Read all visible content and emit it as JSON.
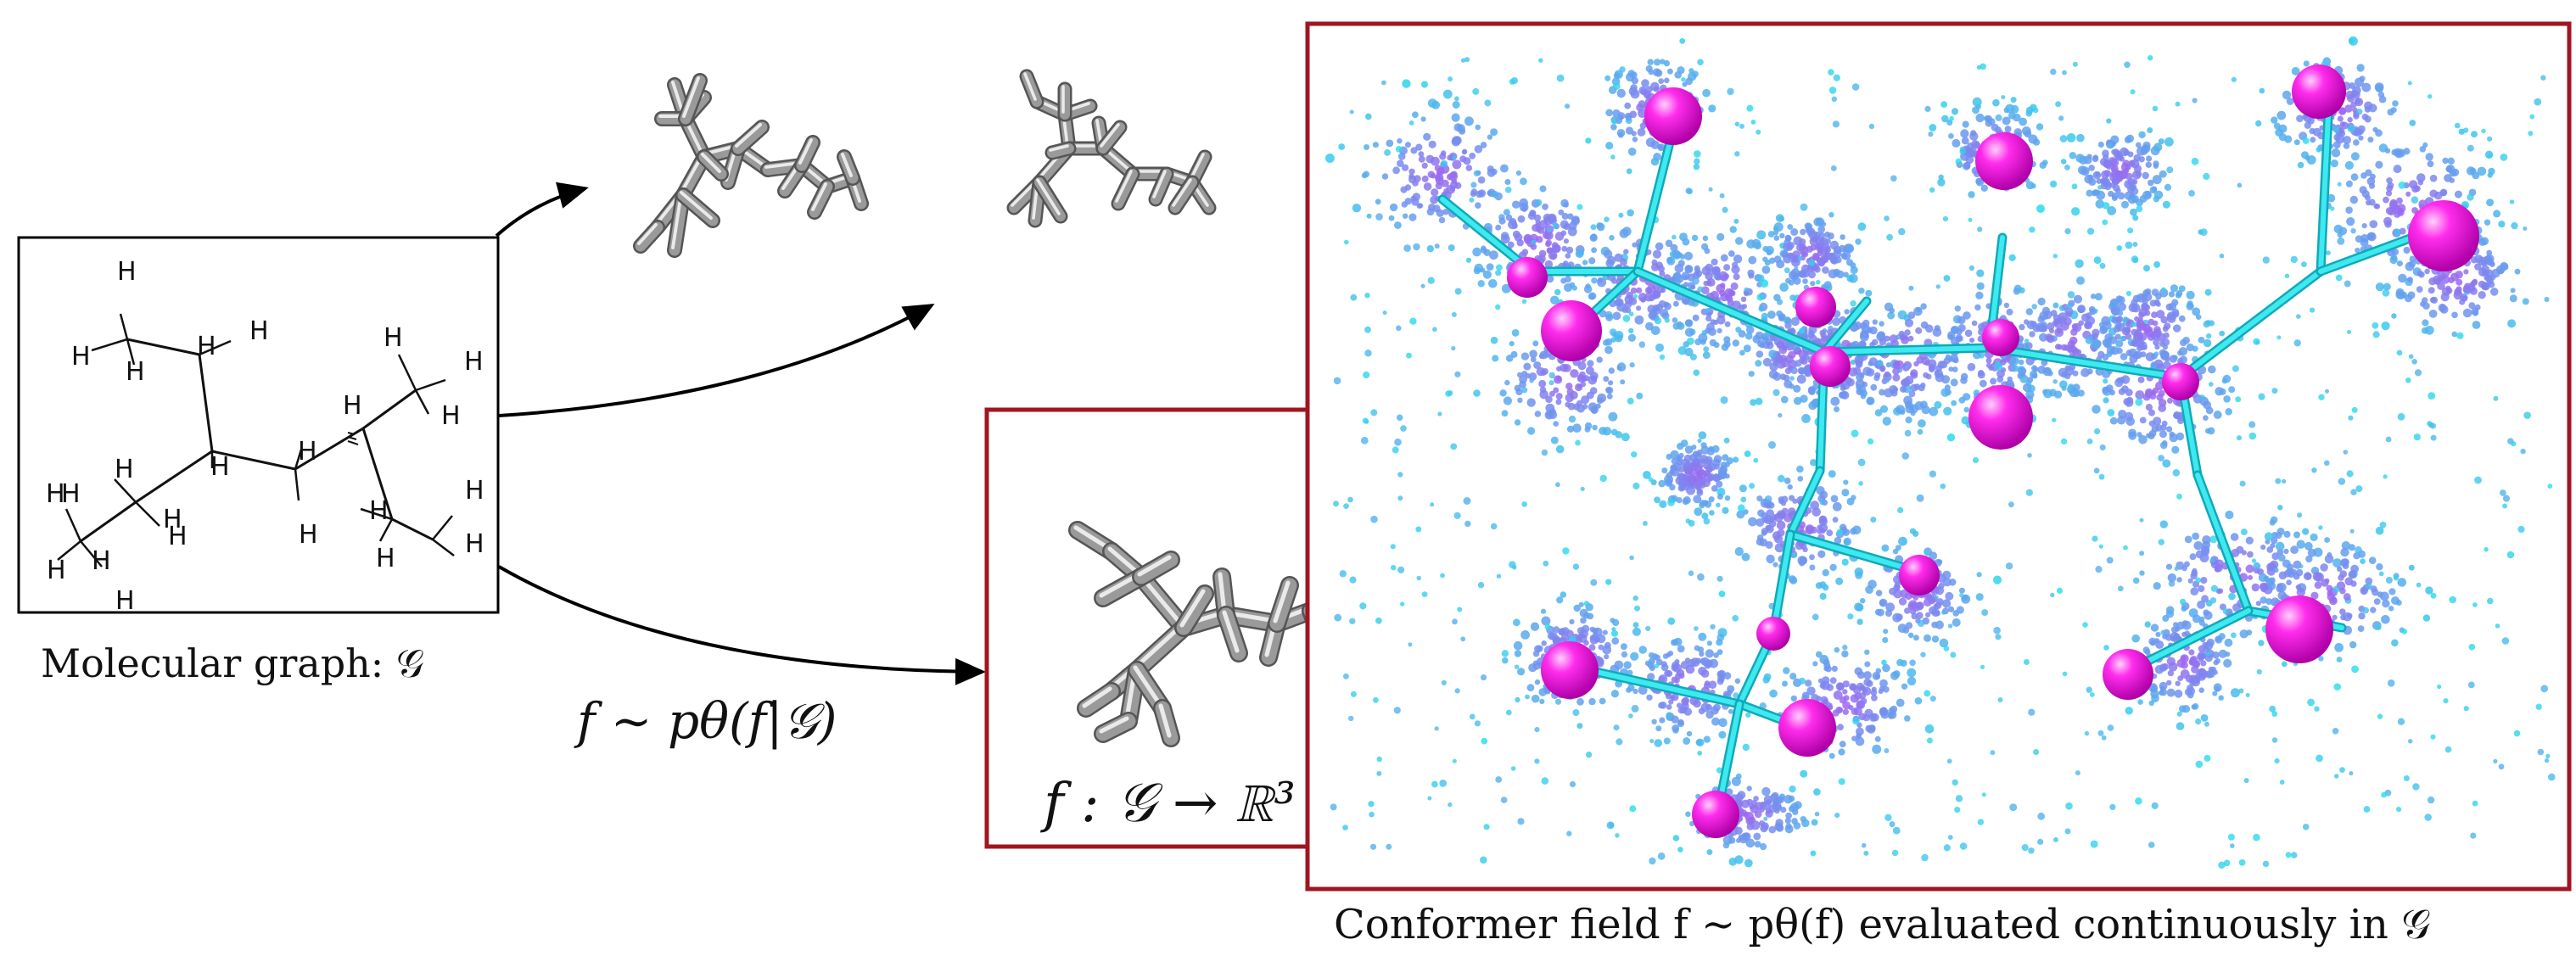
{
  "graph_caption": "Molecular graph: 𝒢",
  "sampling_formula": "f ∼ pθ(f|𝒢)",
  "mapping_formula": "f : 𝒢 → ℝ³",
  "field_caption": "Conformer field f ∼ pθ(f) evaluated continuously in 𝒢",
  "hydrogen_label": "H",
  "colors": {
    "frame_red": "#a01520",
    "cyan": "#22d8e6",
    "violet": "#9b6cf0",
    "magenta": "#ff00e6",
    "bond_gray": "#8c8c8c"
  }
}
